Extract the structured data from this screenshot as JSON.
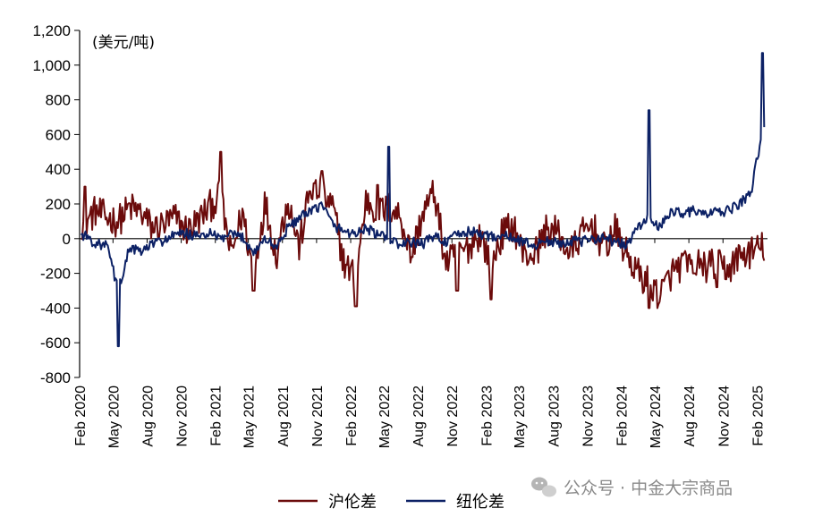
{
  "chart_data": {
    "type": "line",
    "unit_label": "(美元/吨)",
    "ylim": [
      -800,
      1200
    ],
    "yticks": [
      -800,
      -600,
      -400,
      -200,
      0,
      200,
      400,
      600,
      800,
      1000,
      1200
    ],
    "ytick_labels": [
      "-800",
      "-600",
      "-400",
      "-200",
      "0",
      "200",
      "400",
      "600",
      "800",
      "1,000",
      "1,200"
    ],
    "xlim": [
      "2020-02-01",
      "2025-03-01"
    ],
    "xtick_labels": [
      "Feb 2020",
      "May 2020",
      "Aug 2020",
      "Nov 2020",
      "Feb 2021",
      "May 2021",
      "Aug 2021",
      "Nov 2021",
      "Feb 2022",
      "May 2022",
      "Aug 2022",
      "Nov 2022",
      "Feb 2023",
      "May 2023",
      "Aug 2023",
      "Nov 2023",
      "Feb 2024",
      "May 2024",
      "Aug 2024",
      "Nov 2024",
      "Feb 2025"
    ],
    "grid": false,
    "legend_position": "bottom",
    "series": [
      {
        "name": "沪伦差",
        "color": "#6b0b0b",
        "x": [
          "2020-02",
          "2020-03",
          "2020-04",
          "2020-05",
          "2020-06",
          "2020-07",
          "2020-08",
          "2020-09",
          "2020-10",
          "2020-11",
          "2020-12",
          "2021-01",
          "2021-02",
          "2021-03",
          "2021-04",
          "2021-05",
          "2021-06",
          "2021-07",
          "2021-08",
          "2021-09",
          "2021-10",
          "2021-11",
          "2021-12",
          "2022-01",
          "2022-02",
          "2022-03",
          "2022-04",
          "2022-05",
          "2022-06",
          "2022-07",
          "2022-08",
          "2022-09",
          "2022-10",
          "2022-11",
          "2022-12",
          "2023-01",
          "2023-02",
          "2023-03",
          "2023-04",
          "2023-05",
          "2023-06",
          "2023-07",
          "2023-08",
          "2023-09",
          "2023-10",
          "2023-11",
          "2023-12",
          "2024-01",
          "2024-02",
          "2024-03",
          "2024-04",
          "2024-05",
          "2024-06",
          "2024-07",
          "2024-08",
          "2024-09",
          "2024-10",
          "2024-11",
          "2024-12",
          "2025-01",
          "2025-02"
        ],
        "y": [
          90,
          160,
          120,
          100,
          180,
          150,
          60,
          80,
          120,
          50,
          100,
          180,
          250,
          -100,
          150,
          -200,
          210,
          -100,
          230,
          -50,
          290,
          250,
          180,
          -150,
          -220,
          230,
          150,
          180,
          130,
          -100,
          150,
          270,
          -140,
          -100,
          -50,
          30,
          -150,
          20,
          80,
          -100,
          -80,
          60,
          30,
          -90,
          20,
          80,
          -60,
          50,
          -90,
          -200,
          -250,
          -330,
          -200,
          -150,
          -140,
          -160,
          -150,
          -180,
          -100,
          -80,
          -50
        ],
        "spikes": [
          [
            "2020-02",
            300
          ],
          [
            "2021-02",
            500
          ],
          [
            "2021-05",
            -300
          ],
          [
            "2021-11",
            390
          ],
          [
            "2022-02",
            -390
          ],
          [
            "2022-04",
            310
          ],
          [
            "2022-11",
            -300
          ],
          [
            "2023-02",
            -350
          ],
          [
            "2024-04",
            -400
          ],
          [
            "2024-08",
            -200
          ],
          [
            "2024-10",
            -280
          ]
        ]
      },
      {
        "name": "纽伦差",
        "color": "#0c2165",
        "x": [
          "2020-02",
          "2020-03",
          "2020-04",
          "2020-05",
          "2020-06",
          "2020-07",
          "2020-08",
          "2020-09",
          "2020-10",
          "2020-11",
          "2020-12",
          "2021-01",
          "2021-02",
          "2021-03",
          "2021-04",
          "2021-05",
          "2021-06",
          "2021-07",
          "2021-08",
          "2021-09",
          "2021-10",
          "2021-11",
          "2021-12",
          "2022-01",
          "2022-02",
          "2022-03",
          "2022-04",
          "2022-05",
          "2022-06",
          "2022-07",
          "2022-08",
          "2022-09",
          "2022-10",
          "2022-11",
          "2022-12",
          "2023-01",
          "2023-02",
          "2023-03",
          "2023-04",
          "2023-05",
          "2023-06",
          "2023-07",
          "2023-08",
          "2023-09",
          "2023-10",
          "2023-11",
          "2023-12",
          "2024-01",
          "2024-02",
          "2024-03",
          "2024-04",
          "2024-05",
          "2024-06",
          "2024-07",
          "2024-08",
          "2024-09",
          "2024-10",
          "2024-11",
          "2024-12",
          "2025-01",
          "2025-02"
        ],
        "y": [
          20,
          -30,
          -40,
          -300,
          -50,
          -80,
          -30,
          -10,
          20,
          30,
          10,
          30,
          0,
          20,
          10,
          -80,
          0,
          -50,
          60,
          120,
          150,
          200,
          80,
          40,
          30,
          60,
          20,
          0,
          -40,
          -20,
          -30,
          20,
          -20,
          20,
          40,
          30,
          10,
          20,
          0,
          -20,
          -40,
          -10,
          -30,
          -10,
          -20,
          0,
          10,
          -20,
          -40,
          60,
          120,
          60,
          160,
          150,
          160,
          140,
          150,
          160,
          200,
          260,
          620
        ],
        "spikes": [
          [
            "2020-05",
            -620
          ],
          [
            "2022-05",
            530
          ],
          [
            "2024-04",
            740
          ],
          [
            "2025-02",
            1070
          ]
        ]
      }
    ]
  },
  "watermark": "公众号 · 中金大宗商品"
}
